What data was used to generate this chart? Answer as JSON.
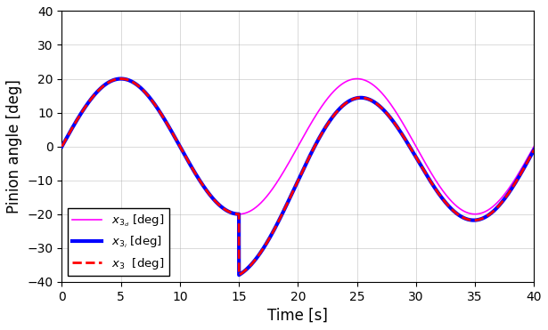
{
  "xlabel": "Time [s]",
  "ylabel": "Pinion angle [deg]",
  "xlim": [
    0,
    40
  ],
  "ylim": [
    -40,
    40
  ],
  "xticks": [
    0,
    5,
    10,
    15,
    20,
    25,
    30,
    35,
    40
  ],
  "yticks": [
    -40,
    -30,
    -20,
    -10,
    0,
    10,
    20,
    30,
    40
  ],
  "magenta_color": "#ff00ff",
  "blue_color": "#0000ff",
  "red_color": "#ff0000",
  "background_color": "#ffffff",
  "t_start": 0,
  "t_end": 40,
  "period": 20,
  "amplitude_ref": 20,
  "num_points": 5000,
  "legend_loc": "lower left",
  "figsize": [
    6.15,
    3.71
  ],
  "dpi": 100
}
